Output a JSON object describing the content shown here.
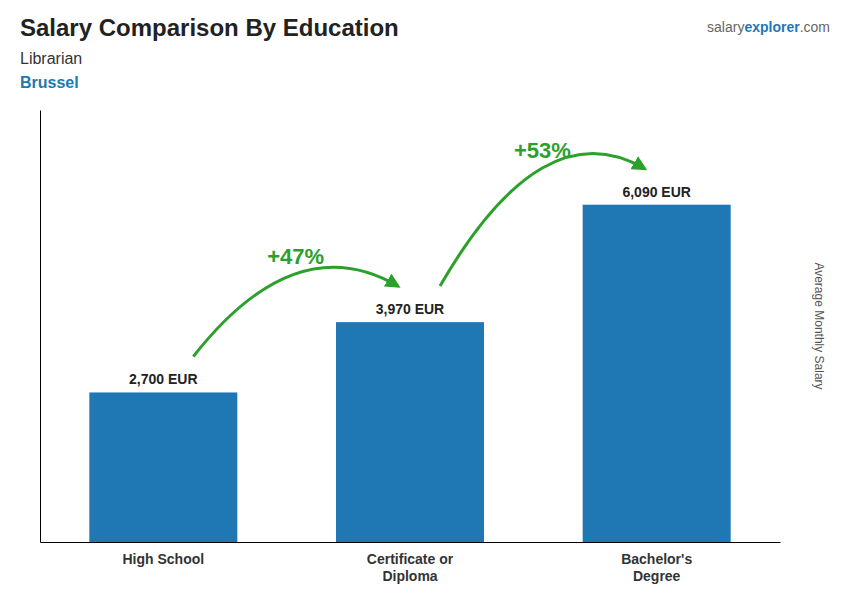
{
  "chart_data": {
    "type": "bar",
    "title": "Salary Comparison By Education",
    "subtitle": [
      "Librarian",
      "Brussel"
    ],
    "categories": [
      "High School",
      "Certificate or\nDiploma",
      "Bachelor's\nDegree"
    ],
    "values": [
      2700,
      3970,
      6090
    ],
    "value_labels": [
      "2,700 EUR",
      "3,970 EUR",
      "6,090 EUR"
    ],
    "data_labels": true,
    "annotations": [
      "+47%",
      "+53%",
      [
        "salary",
        "explorer",
        ".com"
      ]
    ],
    "ylabel": "Average Monthly Salary",
    "ylim": [
      0,
      7800
    ],
    "tick_labels": "x"
  }
}
